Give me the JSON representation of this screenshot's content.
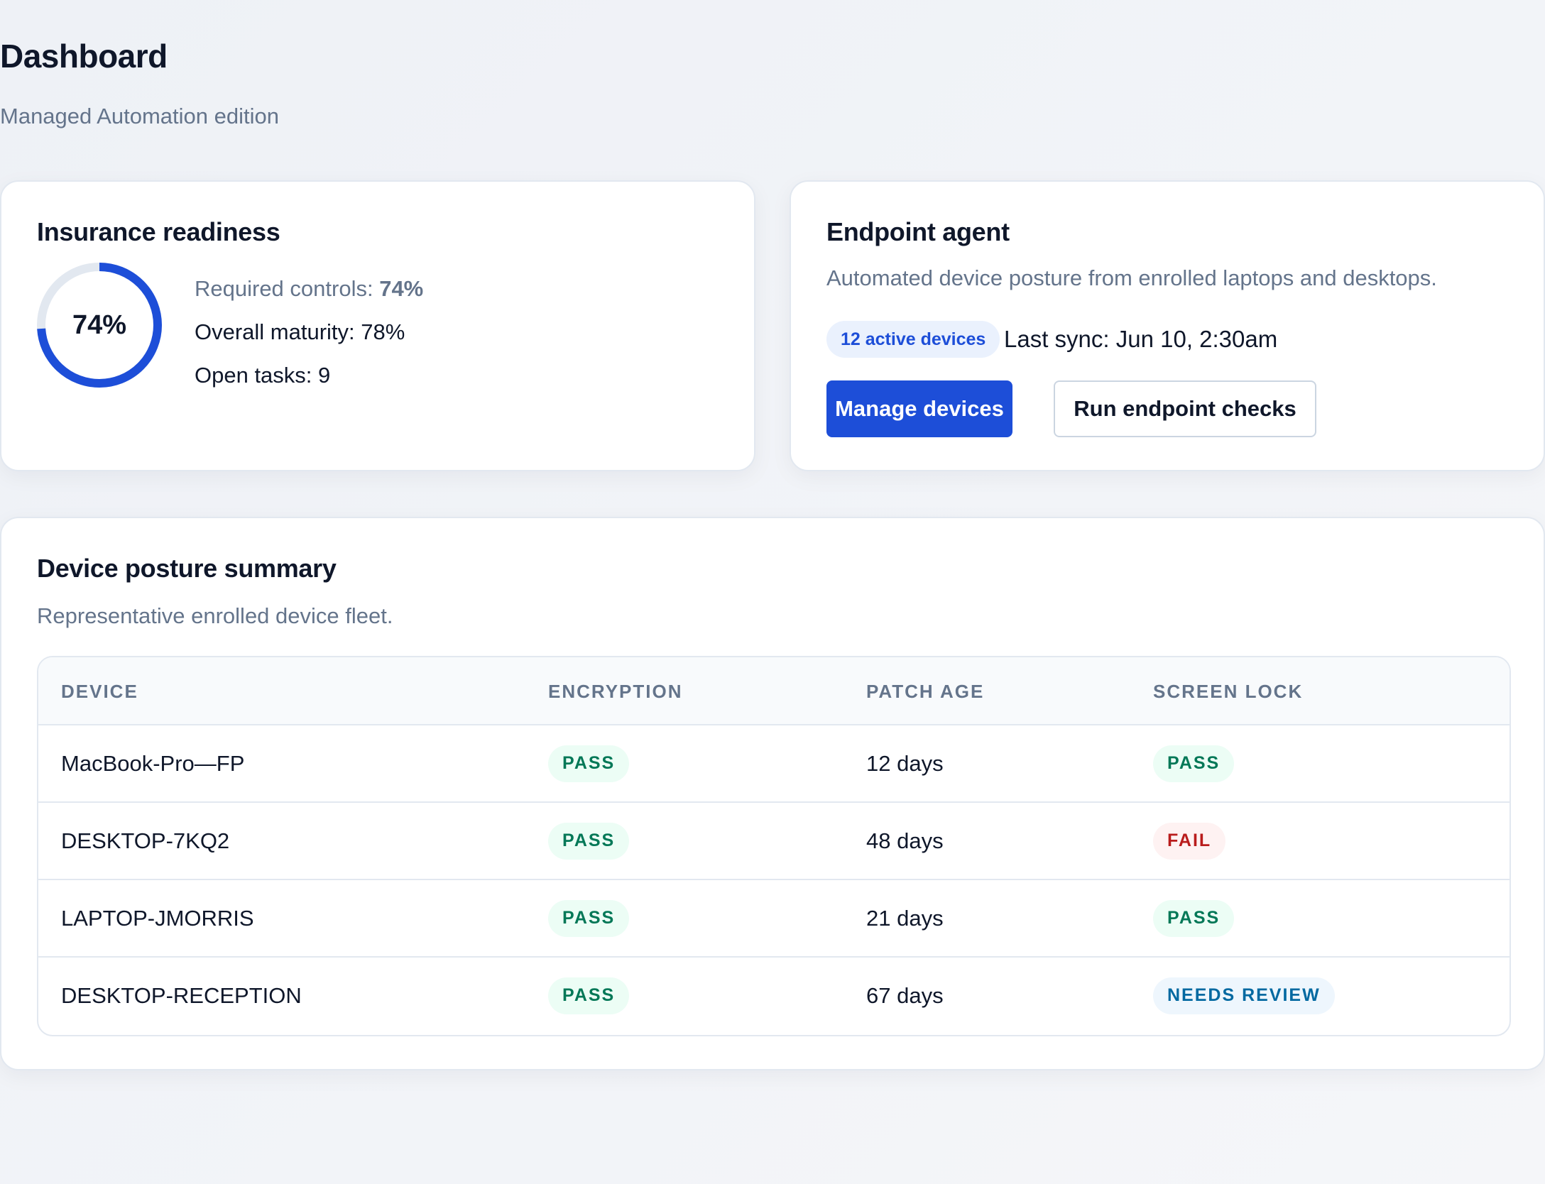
{
  "header": {
    "title": "Dashboard",
    "subtitle": "Managed Automation edition"
  },
  "readiness": {
    "title": "Insurance readiness",
    "ring_label": "74%",
    "ring_fraction": 0.74,
    "required_controls_label": "Required controls:",
    "required_controls_value": "74%",
    "overall_maturity": "Overall maturity: 78%",
    "open_tasks": "Open tasks: 9"
  },
  "agent": {
    "title": "Endpoint agent",
    "description": "Automated device posture from enrolled laptops and desktops.",
    "active_badge": "12 active devices",
    "last_sync": "Last sync: Jun 10, 2:30am",
    "manage_label": "Manage devices",
    "run_checks_label": "Run endpoint checks"
  },
  "posture": {
    "title": "Device posture summary",
    "description": "Representative enrolled device fleet.",
    "columns": [
      "DEVICE",
      "ENCRYPTION",
      "PATCH AGE",
      "SCREEN LOCK"
    ],
    "rows": [
      {
        "device": "MacBook-Pro—FP",
        "encryption": "PASS",
        "patch_age": "12 days",
        "screen_lock": "PASS"
      },
      {
        "device": "DESKTOP-7KQ2",
        "encryption": "PASS",
        "patch_age": "48 days",
        "screen_lock": "FAIL"
      },
      {
        "device": "LAPTOP-JMORRIS",
        "encryption": "PASS",
        "patch_age": "21 days",
        "screen_lock": "PASS"
      },
      {
        "device": "DESKTOP-RECEPTION",
        "encryption": "PASS",
        "patch_age": "67 days",
        "screen_lock": "NEEDS REVIEW"
      }
    ]
  },
  "colors": {
    "accent": "#1d4ed8",
    "ring_track": "#e2e8f0",
    "pass": "#047857",
    "fail": "#b91c1c",
    "review": "#0369a1"
  }
}
